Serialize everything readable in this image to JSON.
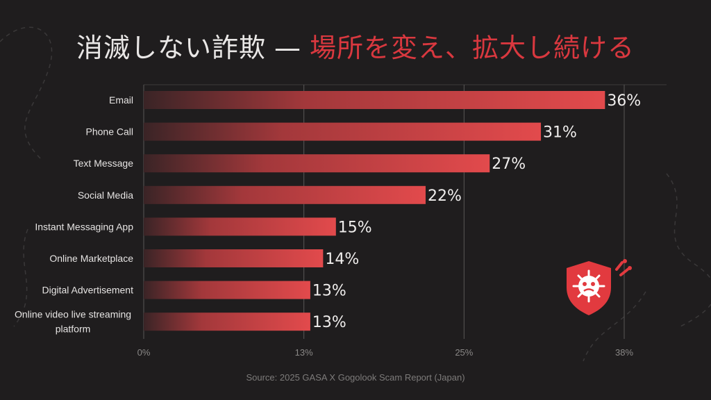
{
  "title": {
    "part1": "消滅しない詐欺",
    "dash": "—",
    "part2": "場所を変え、拡大し続ける"
  },
  "source": "Source: 2025 GASA X Gogolook Scam Report (Japan)",
  "colors": {
    "background": "#1f1d1e",
    "bar_start": "#3a2426",
    "bar_end": "#e24a4c",
    "accent": "#d9383f",
    "grid": "#5a5857"
  },
  "badge_icon": "shield-virus-icon",
  "chart_data": {
    "type": "bar",
    "orientation": "horizontal",
    "categories": [
      "Email",
      "Phone Call",
      "Text Message",
      "Social Media",
      "Instant Messaging App",
      "Online Marketplace",
      "Digital Advertisement",
      "Online video live streaming platform"
    ],
    "category_lines": [
      [
        "Email"
      ],
      [
        "Phone Call"
      ],
      [
        "Text Message"
      ],
      [
        "Social Media"
      ],
      [
        "Instant Messaging App"
      ],
      [
        "Online Marketplace"
      ],
      [
        "Digital Advertisement"
      ],
      [
        "Online video live streaming",
        "platform"
      ]
    ],
    "values": [
      36,
      31,
      27,
      22,
      15,
      14,
      13,
      13
    ],
    "value_labels": [
      "36%",
      "31%",
      "27%",
      "22%",
      "15%",
      "14%",
      "13%",
      "13%"
    ],
    "x_ticks": [
      0,
      12.5,
      25,
      37.5
    ],
    "x_tick_labels": [
      "0%",
      "13%",
      "25%",
      "38%"
    ],
    "xlim": [
      0,
      40
    ],
    "grid": "vertical",
    "legend": "none"
  }
}
